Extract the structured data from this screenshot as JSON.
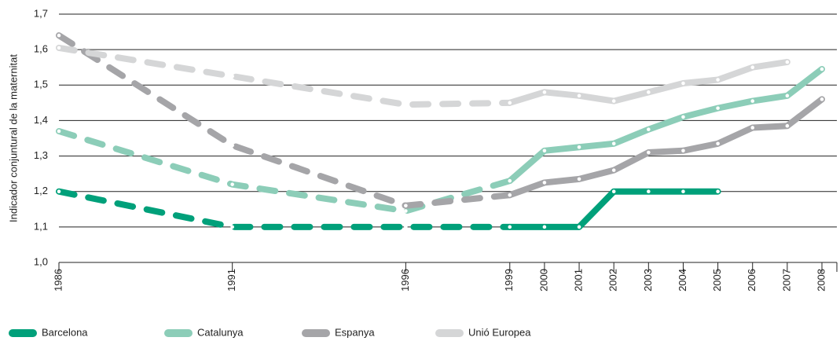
{
  "chart_data": {
    "type": "line",
    "y_label": "Indicador conjuntural de la maternitat",
    "x": [
      1986,
      1991,
      1996,
      1999,
      2000,
      2001,
      2002,
      2003,
      2004,
      2005,
      2006,
      2007,
      2008
    ],
    "xlim": [
      1986,
      2008
    ],
    "xticks": [
      1986,
      1991,
      1996,
      1999,
      2000,
      2001,
      2002,
      2003,
      2004,
      2005,
      2006,
      2007,
      2008
    ],
    "ylim": [
      1.0,
      1.7
    ],
    "yticks": [
      {
        "value": 1.0,
        "label": "1,0"
      },
      {
        "value": 1.1,
        "label": "1,1"
      },
      {
        "value": 1.2,
        "label": "1,2"
      },
      {
        "value": 1.3,
        "label": "1,3"
      },
      {
        "value": 1.4,
        "label": "1,4"
      },
      {
        "value": 1.5,
        "label": "1,5"
      },
      {
        "value": 1.6,
        "label": "1,6"
      },
      {
        "value": 1.7,
        "label": "1,7"
      }
    ],
    "grid": true,
    "dashed_until": 1999,
    "series": [
      {
        "name": "Barcelona",
        "color": "#00a07a",
        "values": [
          1.2,
          1.1,
          1.1,
          1.1,
          1.1,
          1.1,
          1.2,
          1.2,
          1.2,
          1.2,
          null,
          null,
          null
        ]
      },
      {
        "name": "Catalunya",
        "color": "#8ccdb8",
        "values": [
          1.37,
          1.22,
          1.145,
          1.23,
          1.315,
          1.325,
          1.335,
          1.375,
          1.41,
          1.435,
          1.455,
          1.47,
          1.545
        ]
      },
      {
        "name": "Espanya",
        "color": "#a5a5a8",
        "values": [
          1.64,
          1.33,
          1.16,
          1.19,
          1.225,
          1.235,
          1.26,
          1.31,
          1.315,
          1.335,
          1.38,
          1.385,
          1.46
        ]
      },
      {
        "name": "Unió Europea",
        "color": "#d5d6d7",
        "values": [
          1.605,
          1.525,
          1.445,
          1.45,
          1.48,
          1.47,
          1.455,
          1.48,
          1.505,
          1.515,
          1.55,
          1.565,
          null
        ]
      }
    ]
  }
}
